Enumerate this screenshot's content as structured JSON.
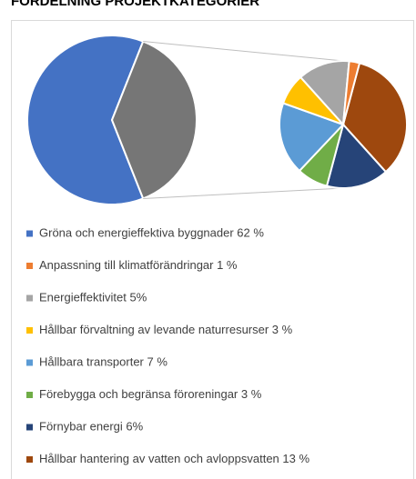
{
  "chart_data": {
    "type": "pie_of_pie",
    "title": "FÖRDELNING PROJEKTKATEGORIER",
    "categories": [
      "Gröna och energieffektiva byggnader 62 %",
      "Anpassning till klimatförändringar 1 %",
      "Energieffektivitet 5%",
      "Hållbar förvaltning av levande naturresurser 3 %",
      "Hållbara transporter 7 %",
      "Förebygga och begränsa föroreningar 3 %",
      "Förnybar energi 6%",
      "Hållbar hantering av vatten och avloppsvatten 13 %"
    ],
    "values": [
      62,
      1,
      5,
      3,
      7,
      3,
      6,
      13
    ],
    "colors": [
      "#4472c4",
      "#ed7d31",
      "#a5a5a5",
      "#ffc000",
      "#5b9bd5",
      "#70ad47",
      "#264478",
      "#9e480e"
    ],
    "other_color": "#767676",
    "second_plot_values": 7
  }
}
